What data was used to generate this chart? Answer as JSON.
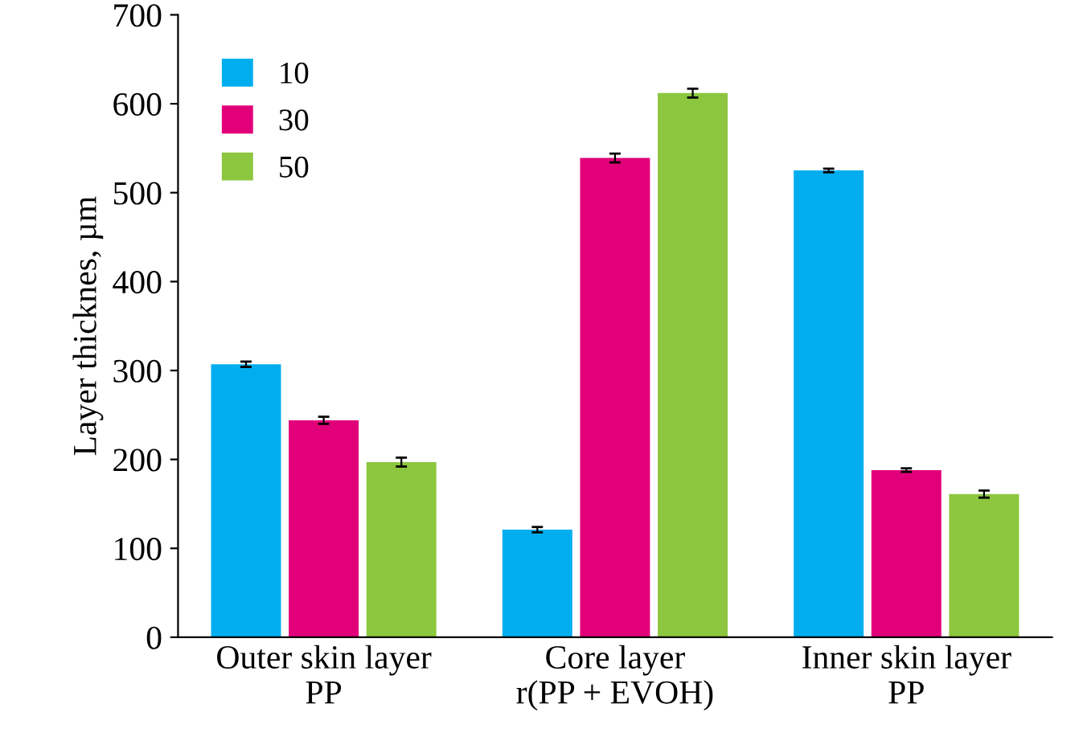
{
  "chart_data": {
    "type": "bar",
    "ylabel": "Layer thicknes, µm",
    "categories": [
      "Outer skin layer\nPP",
      "Core layer\nr(PP + EVOH)",
      "Inner skin layer\nPP"
    ],
    "series": [
      {
        "name": "10",
        "color": "#00aeef",
        "values": [
          307,
          121,
          525
        ],
        "errors": [
          3,
          3,
          2
        ]
      },
      {
        "name": "30",
        "color": "#e2007a",
        "values": [
          244,
          539,
          188
        ],
        "errors": [
          4,
          5,
          2
        ]
      },
      {
        "name": "50",
        "color": "#8dc63f",
        "values": [
          197,
          612,
          161
        ],
        "errors": [
          5,
          5,
          4
        ]
      }
    ],
    "ylim": [
      0,
      700
    ],
    "yticks": [
      0,
      100,
      200,
      300,
      400,
      500,
      600,
      700
    ],
    "grid": false,
    "legend": "top left"
  }
}
